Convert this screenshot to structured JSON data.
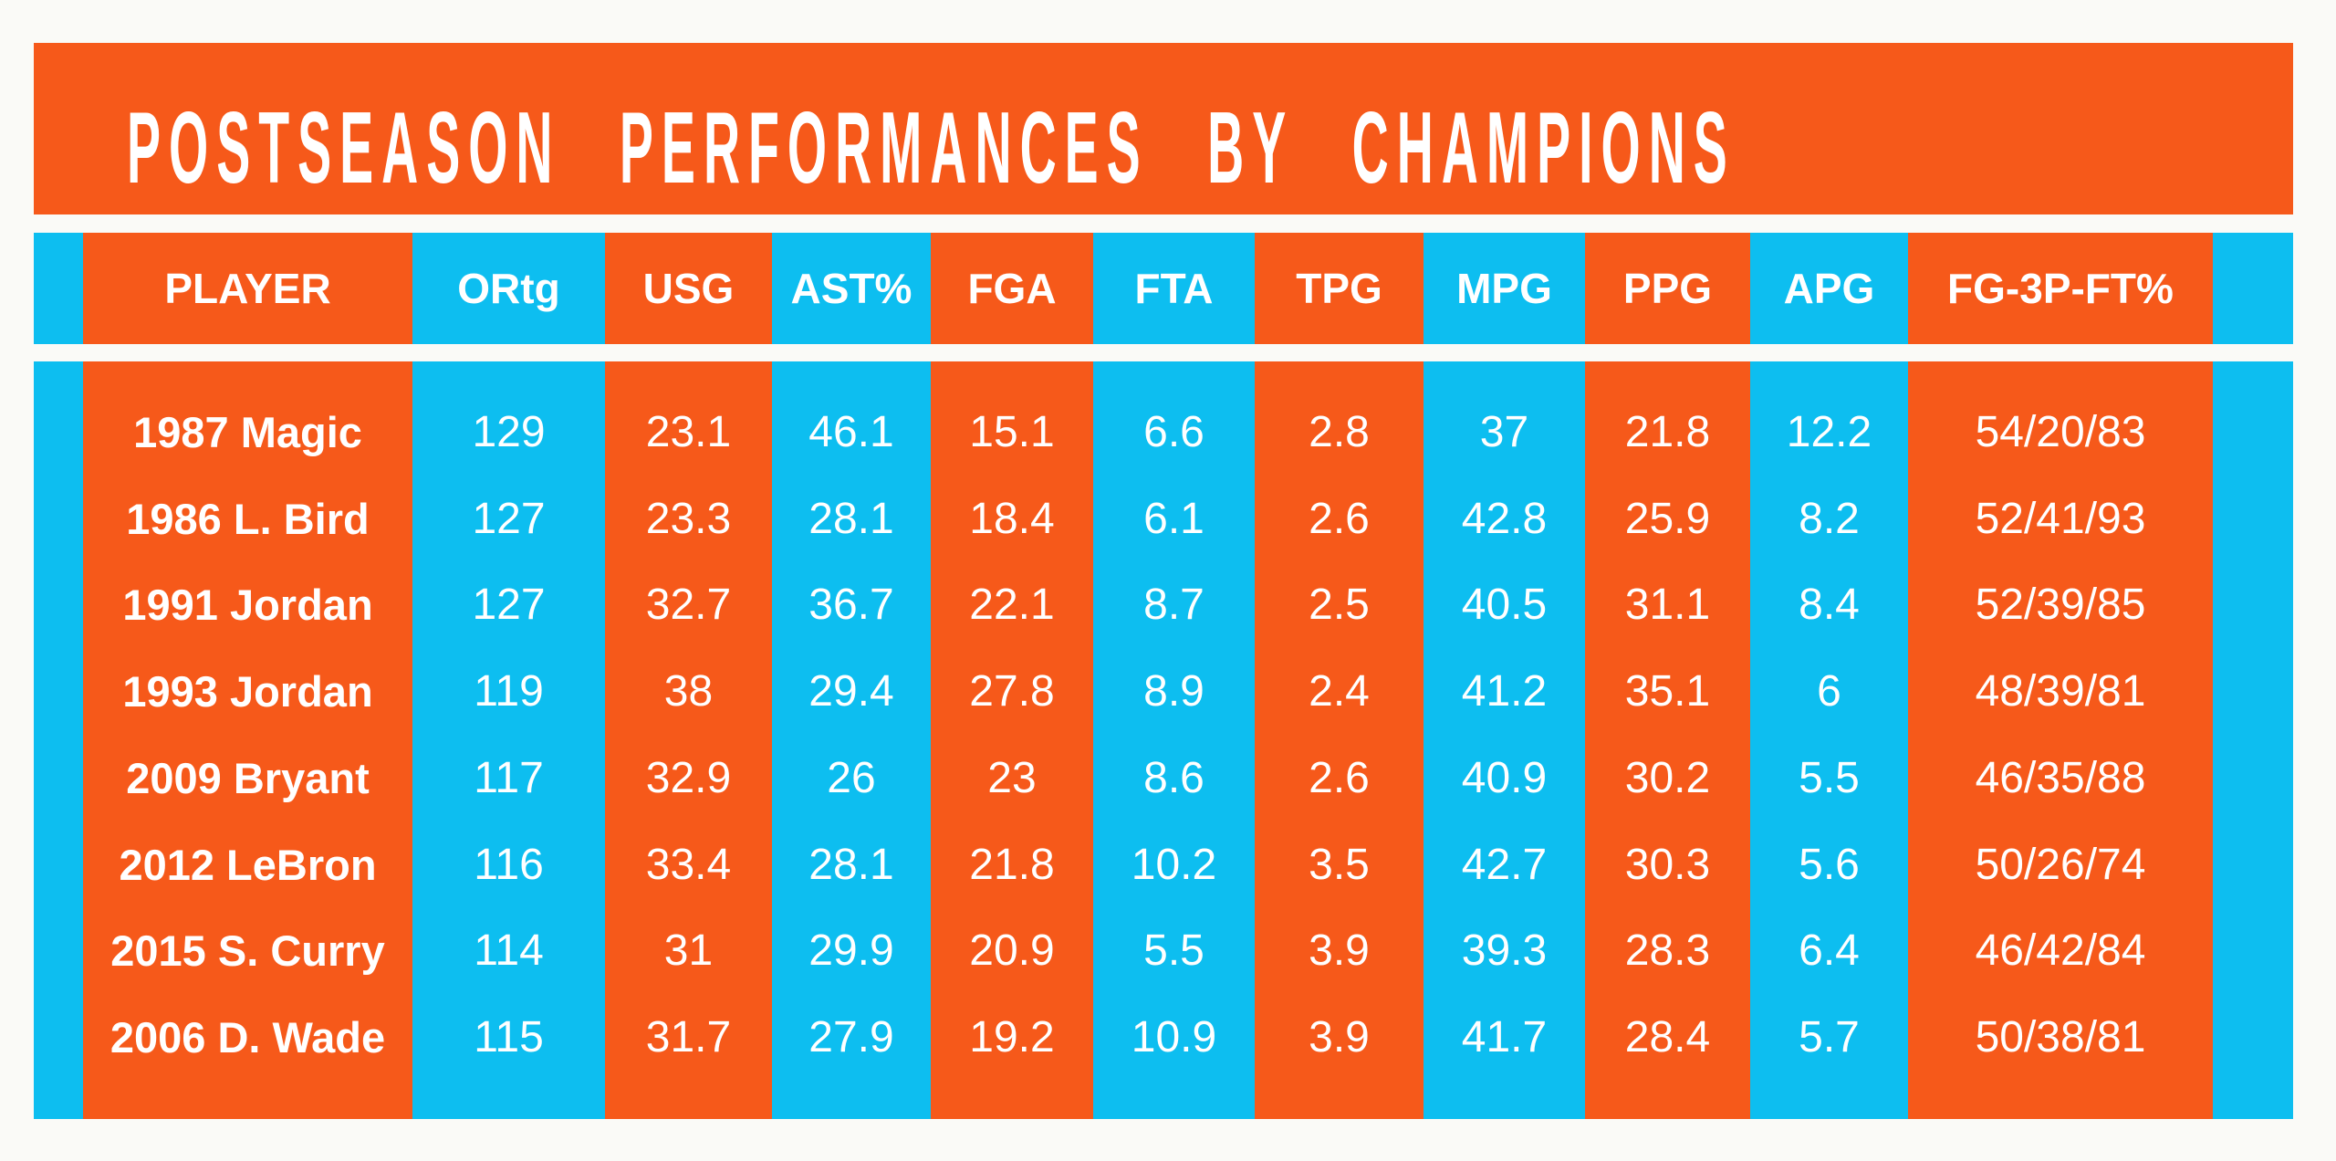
{
  "title": "POSTSEASON PERFORMANCES BY CHAMPIONS",
  "colors": {
    "orange": "#F6591A",
    "cyan": "#0DBEF0",
    "text": "#FFFFFF",
    "page_bg": "#FAFAF7"
  },
  "table": {
    "columns": [
      "PLAYER",
      "ORtg",
      "USG",
      "AST%",
      "FGA",
      "FTA",
      "TPG",
      "MPG",
      "PPG",
      "APG",
      "FG-3P-FT%"
    ],
    "rows": [
      {
        "player": "1987 Magic",
        "ortg": "129",
        "usg": "23.1",
        "ast_pct": "46.1",
        "fga": "15.1",
        "fta": "6.6",
        "tpg": "2.8",
        "mpg": "37",
        "ppg": "21.8",
        "apg": "12.2",
        "fg_3p_ft": "54/20/83"
      },
      {
        "player": "1986 L. Bird",
        "ortg": "127",
        "usg": "23.3",
        "ast_pct": "28.1",
        "fga": "18.4",
        "fta": "6.1",
        "tpg": "2.6",
        "mpg": "42.8",
        "ppg": "25.9",
        "apg": "8.2",
        "fg_3p_ft": "52/41/93"
      },
      {
        "player": "1991 Jordan",
        "ortg": "127",
        "usg": "32.7",
        "ast_pct": "36.7",
        "fga": "22.1",
        "fta": "8.7",
        "tpg": "2.5",
        "mpg": "40.5",
        "ppg": "31.1",
        "apg": "8.4",
        "fg_3p_ft": "52/39/85"
      },
      {
        "player": "1993 Jordan",
        "ortg": "119",
        "usg": "38",
        "ast_pct": "29.4",
        "fga": "27.8",
        "fta": "8.9",
        "tpg": "2.4",
        "mpg": "41.2",
        "ppg": "35.1",
        "apg": "6",
        "fg_3p_ft": "48/39/81"
      },
      {
        "player": "2009 Bryant",
        "ortg": "117",
        "usg": "32.9",
        "ast_pct": "26",
        "fga": "23",
        "fta": "8.6",
        "tpg": "2.6",
        "mpg": "40.9",
        "ppg": "30.2",
        "apg": "5.5",
        "fg_3p_ft": "46/35/88"
      },
      {
        "player": "2012 LeBron",
        "ortg": "116",
        "usg": "33.4",
        "ast_pct": "28.1",
        "fga": "21.8",
        "fta": "10.2",
        "tpg": "3.5",
        "mpg": "42.7",
        "ppg": "30.3",
        "apg": "5.6",
        "fg_3p_ft": "50/26/74"
      },
      {
        "player": "2015 S. Curry",
        "ortg": "114",
        "usg": "31",
        "ast_pct": "29.9",
        "fga": "20.9",
        "fta": "5.5",
        "tpg": "3.9",
        "mpg": "39.3",
        "ppg": "28.3",
        "apg": "6.4",
        "fg_3p_ft": "46/42/84"
      },
      {
        "player": "2006 D. Wade",
        "ortg": "115",
        "usg": "31.7",
        "ast_pct": "27.9",
        "fga": "19.2",
        "fta": "10.9",
        "tpg": "3.9",
        "mpg": "41.7",
        "ppg": "28.4",
        "apg": "5.7",
        "fg_3p_ft": "50/38/81"
      }
    ]
  },
  "chart_data": {
    "type": "table",
    "title": "POSTSEASON PERFORMANCES BY CHAMPIONS",
    "columns": [
      "PLAYER",
      "ORtg",
      "USG",
      "AST%",
      "FGA",
      "FTA",
      "TPG",
      "MPG",
      "PPG",
      "APG",
      "FG-3P-FT%"
    ],
    "rows": [
      [
        "1987 Magic",
        129,
        23.1,
        46.1,
        15.1,
        6.6,
        2.8,
        37,
        21.8,
        12.2,
        "54/20/83"
      ],
      [
        "1986 L. Bird",
        127,
        23.3,
        28.1,
        18.4,
        6.1,
        2.6,
        42.8,
        25.9,
        8.2,
        "52/41/93"
      ],
      [
        "1991 Jordan",
        127,
        32.7,
        36.7,
        22.1,
        8.7,
        2.5,
        40.5,
        31.1,
        8.4,
        "52/39/85"
      ],
      [
        "1993 Jordan",
        119,
        38,
        29.4,
        27.8,
        8.9,
        2.4,
        41.2,
        35.1,
        6,
        "48/39/81"
      ],
      [
        "2009 Bryant",
        117,
        32.9,
        26,
        23,
        8.6,
        2.6,
        40.9,
        30.2,
        5.5,
        "46/35/88"
      ],
      [
        "2012 LeBron",
        116,
        33.4,
        28.1,
        21.8,
        10.2,
        3.5,
        42.7,
        30.3,
        5.6,
        "50/26/74"
      ],
      [
        "2015 S. Curry",
        114,
        31,
        29.9,
        20.9,
        5.5,
        3.9,
        39.3,
        28.3,
        6.4,
        "46/42/84"
      ],
      [
        "2006 D. Wade",
        115,
        31.7,
        27.9,
        19.2,
        10.9,
        3.9,
        41.7,
        28.4,
        5.7,
        "50/38/81"
      ]
    ],
    "layout": {
      "column_stripe_colors": [
        "orange",
        "cyan",
        "orange",
        "cyan",
        "orange",
        "cyan",
        "orange",
        "cyan",
        "orange",
        "cyan",
        "orange"
      ],
      "grid": false,
      "legend": false
    }
  }
}
